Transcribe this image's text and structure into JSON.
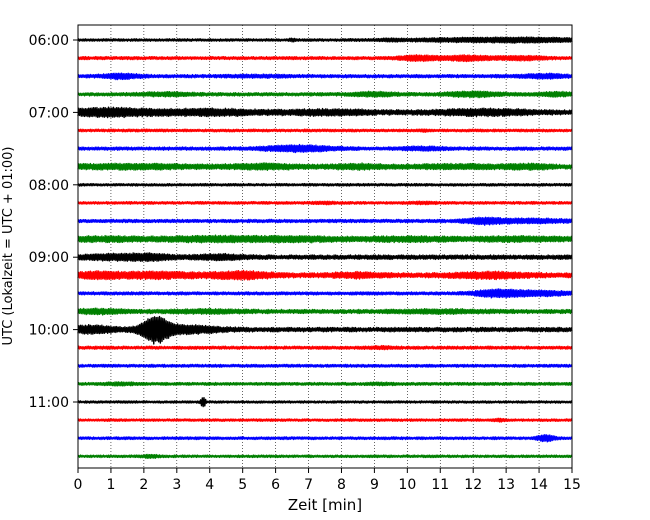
{
  "chart_data": {
    "type": "line",
    "title": "",
    "xlabel": "Zeit  [min]",
    "ylabel": "UTC (Lokalzeit = UTC + 01:00)",
    "xlim": [
      0,
      15
    ],
    "x_ticks": [
      0,
      1,
      2,
      3,
      4,
      5,
      6,
      7,
      8,
      9,
      10,
      11,
      12,
      13,
      14,
      15
    ],
    "y_ticks": [
      "06:00",
      "07:00",
      "08:00",
      "09:00",
      "10:00",
      "11:00"
    ],
    "y_tick_traces": [
      0,
      4,
      8,
      12,
      16,
      20
    ],
    "trace_interval_min": 15,
    "grid": {
      "x": true,
      "style": "dotted"
    },
    "trace_colors": [
      "#000000",
      "#ff0000",
      "#0000ff",
      "#008000"
    ],
    "series": [
      {
        "start": "06:00",
        "color": "#000000",
        "noise": 1.2,
        "bursts": [
          [
            6.5,
            0.7,
            0.1
          ],
          [
            9.5,
            0.5,
            0.2
          ],
          [
            12.2,
            1.5,
            1.8
          ],
          [
            14.0,
            1.0,
            1.0
          ]
        ]
      },
      {
        "start": "06:15",
        "color": "#ff0000",
        "noise": 1.5,
        "bursts": [
          [
            10.3,
            2.0,
            0.4
          ],
          [
            11.8,
            2.0,
            0.6
          ],
          [
            13.5,
            1.5,
            0.5
          ]
        ]
      },
      {
        "start": "06:30",
        "color": "#0000ff",
        "noise": 1.6,
        "bursts": [
          [
            1.3,
            2.0,
            0.4
          ],
          [
            5.5,
            0.6,
            0.6
          ],
          [
            14.2,
            1.5,
            0.5
          ]
        ]
      },
      {
        "start": "06:45",
        "color": "#008000",
        "noise": 1.6,
        "bursts": [
          [
            2.7,
            1.2,
            0.6
          ],
          [
            9.0,
            1.5,
            0.5
          ],
          [
            12.0,
            2.0,
            0.6
          ],
          [
            14.5,
            1.5,
            0.4
          ]
        ]
      },
      {
        "start": "07:00",
        "color": "#000000",
        "noise": 2.5,
        "bursts": [
          [
            1.0,
            3.0,
            1.0
          ],
          [
            4.0,
            2.0,
            1.0
          ],
          [
            7.5,
            1.5,
            1.0
          ],
          [
            12.3,
            2.0,
            1.0
          ]
        ]
      },
      {
        "start": "07:15",
        "color": "#ff0000",
        "noise": 1.3,
        "bursts": [
          [
            10.5,
            0.8,
            0.1
          ]
        ]
      },
      {
        "start": "07:30",
        "color": "#0000ff",
        "noise": 1.6,
        "bursts": [
          [
            6.7,
            2.5,
            0.8
          ],
          [
            10.5,
            1.2,
            0.5
          ]
        ]
      },
      {
        "start": "07:45",
        "color": "#008000",
        "noise": 2.2,
        "bursts": [
          [
            1.5,
            1.5,
            1.5
          ],
          [
            5.7,
            1.5,
            0.8
          ],
          [
            8.5,
            1.5,
            0.6
          ],
          [
            11.5,
            1.2,
            1.0
          ],
          [
            13.7,
            1.5,
            0.5
          ]
        ]
      },
      {
        "start": "08:00",
        "color": "#000000",
        "noise": 1.2,
        "bursts": []
      },
      {
        "start": "08:15",
        "color": "#ff0000",
        "noise": 1.3,
        "bursts": [
          [
            7.5,
            0.6,
            0.3
          ],
          [
            10.5,
            0.6,
            0.3
          ]
        ]
      },
      {
        "start": "08:30",
        "color": "#0000ff",
        "noise": 1.6,
        "bursts": [
          [
            12.3,
            2.0,
            0.4
          ],
          [
            13.7,
            1.5,
            1.0
          ]
        ]
      },
      {
        "start": "08:45",
        "color": "#008000",
        "noise": 2.4,
        "bursts": [
          [
            0.8,
            1.2,
            1.0
          ],
          [
            4.0,
            1.5,
            1.0
          ],
          [
            6.5,
            1.5,
            1.0
          ],
          [
            10.0,
            1.2,
            1.0
          ],
          [
            13.5,
            1.2,
            1.0
          ]
        ]
      },
      {
        "start": "09:00",
        "color": "#000000",
        "noise": 2.2,
        "bursts": [
          [
            1.2,
            2.0,
            0.8
          ],
          [
            2.3,
            1.5,
            0.4
          ],
          [
            4.3,
            1.5,
            0.6
          ]
        ]
      },
      {
        "start": "09:15",
        "color": "#ff0000",
        "noise": 2.4,
        "bursts": [
          [
            0.6,
            2.0,
            0.5
          ],
          [
            2.3,
            2.0,
            1.0
          ],
          [
            5.0,
            2.5,
            0.7
          ],
          [
            8.5,
            1.5,
            0.6
          ],
          [
            12.5,
            2.0,
            0.8
          ]
        ]
      },
      {
        "start": "09:30",
        "color": "#0000ff",
        "noise": 1.5,
        "bursts": [
          [
            12.7,
            3.0,
            0.5
          ],
          [
            14.0,
            2.0,
            0.7
          ]
        ]
      },
      {
        "start": "09:45",
        "color": "#008000",
        "noise": 2.0,
        "bursts": [
          [
            0.7,
            1.5,
            0.6
          ],
          [
            4.0,
            1.0,
            0.8
          ],
          [
            11.0,
            1.0,
            1.0
          ]
        ]
      },
      {
        "start": "10:00",
        "color": "#000000",
        "noise": 2.2,
        "bursts": [
          [
            0.4,
            3.0,
            0.5
          ],
          [
            2.35,
            11.0,
            0.3
          ],
          [
            3.2,
            3.0,
            0.8
          ]
        ]
      },
      {
        "start": "10:15",
        "color": "#ff0000",
        "noise": 1.5,
        "bursts": [
          [
            9.2,
            0.8,
            0.3
          ]
        ]
      },
      {
        "start": "10:30",
        "color": "#0000ff",
        "noise": 1.4,
        "bursts": []
      },
      {
        "start": "10:45",
        "color": "#008000",
        "noise": 1.4,
        "bursts": [
          [
            1.3,
            0.8,
            0.4
          ],
          [
            9.2,
            0.6,
            0.3
          ]
        ]
      },
      {
        "start": "11:00",
        "color": "#000000",
        "noise": 1.1,
        "bursts": [
          [
            3.8,
            5.0,
            0.05
          ]
        ]
      },
      {
        "start": "11:15",
        "color": "#ff0000",
        "noise": 1.2,
        "bursts": [
          [
            12.8,
            1.0,
            0.1
          ]
        ]
      },
      {
        "start": "11:30",
        "color": "#0000ff",
        "noise": 1.3,
        "bursts": [
          [
            14.2,
            2.5,
            0.2
          ]
        ]
      },
      {
        "start": "11:45",
        "color": "#008000",
        "noise": 1.2,
        "bursts": [
          [
            2.2,
            1.0,
            0.2
          ]
        ]
      }
    ]
  }
}
